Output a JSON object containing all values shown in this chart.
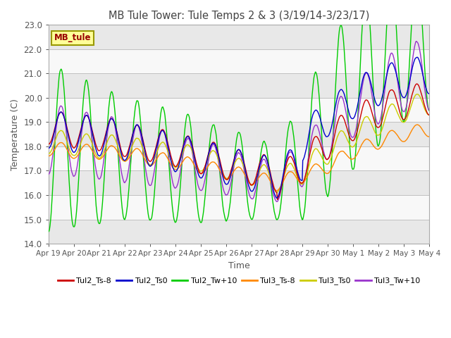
{
  "title": "MB Tule Tower: Tule Temps 2 & 3 (3/19/14-3/23/17)",
  "ylabel": "Temperature (C)",
  "xlabel": "Time",
  "ylim": [
    14.0,
    23.0
  ],
  "yticks": [
    14.0,
    15.0,
    16.0,
    17.0,
    18.0,
    19.0,
    20.0,
    21.0,
    22.0,
    23.0
  ],
  "xtick_labels": [
    "Apr 19",
    "Apr 20",
    "Apr 21",
    "Apr 22",
    "Apr 23",
    "Apr 24",
    "Apr 25",
    "Apr 26",
    "Apr 27",
    "Apr 28",
    "Apr 29",
    "Apr 30",
    "May 1",
    "May 2",
    "May 3",
    "May 4"
  ],
  "legend_box_label": "MB_tule",
  "line_colors": {
    "Tul2_Ts-8": "#cc0000",
    "Tul2_Ts0": "#0000cc",
    "Tul2_Tw+10": "#00cc00",
    "Tul3_Ts-8": "#ff8800",
    "Tul3_Ts0": "#cccc00",
    "Tul3_Tw+10": "#9933cc"
  },
  "bg_color": "#ffffff"
}
